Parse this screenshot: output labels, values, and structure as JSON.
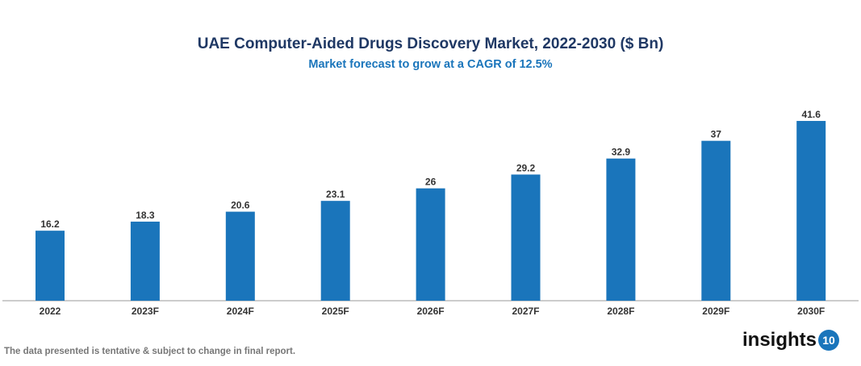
{
  "chart_data": {
    "type": "bar",
    "title": "UAE Computer-Aided Drugs Discovery Market, 2022-2030 ($ Bn)",
    "subtitle": "Market forecast to grow at a CAGR of 12.5%",
    "categories": [
      "2022",
      "2023F",
      "2024F",
      "2025F",
      "2026F",
      "2027F",
      "2028F",
      "2029F",
      "2030F"
    ],
    "values": [
      16.2,
      18.3,
      20.6,
      23.1,
      26,
      29.2,
      32.9,
      37,
      41.6
    ],
    "xlabel": "",
    "ylabel": "",
    "ylim": [
      0,
      42
    ],
    "grid": false,
    "bar_color": "#1a75bb"
  },
  "footer": {
    "note": "The data presented is tentative & subject to change in final report.",
    "logo_text": "insights",
    "logo_badge": "10"
  }
}
